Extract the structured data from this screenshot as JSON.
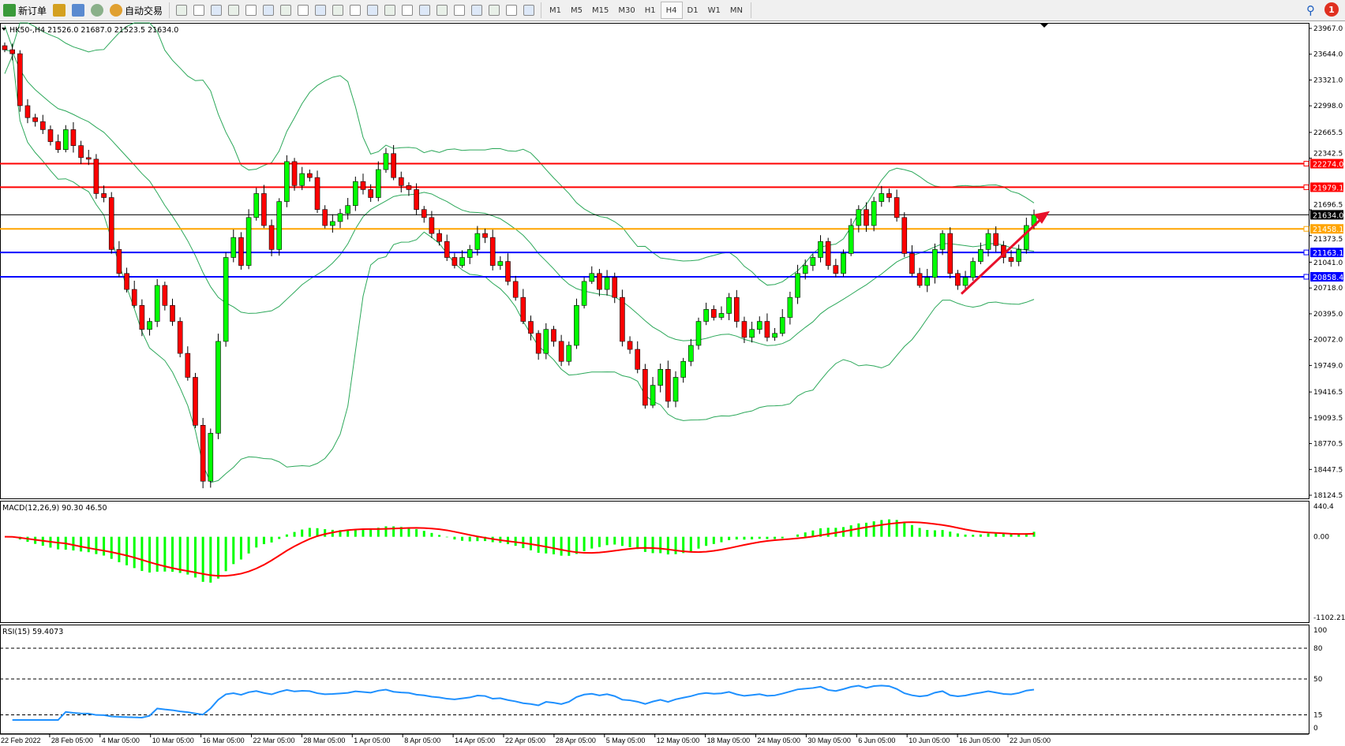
{
  "toolbar": {
    "new_order": "新订单",
    "auto_trade": "自动交易",
    "icons": [
      "chart-bar-icon",
      "candlestick-icon",
      "line-chart-icon",
      "zoom-in-icon",
      "zoom-out-icon",
      "tile-windows-icon",
      "auto-scroll-icon",
      "chart-shift-icon",
      "indicators-icon",
      "periods-icon",
      "templates-icon",
      "cursor-icon",
      "crosshair-icon",
      "vertical-line-icon",
      "horizontal-line-icon",
      "trendline-icon",
      "channel-icon",
      "fibonacci-icon",
      "text-icon",
      "text-label-icon",
      "arrows-icon"
    ],
    "timeframes": [
      "M1",
      "M5",
      "M15",
      "M30",
      "H1",
      "H4",
      "D1",
      "W1",
      "MN"
    ],
    "selected_timeframe": "H4",
    "notification_count": "1"
  },
  "chart": {
    "header": "HK50-,H4  21526.0 21687.0 21523.5 21634.0",
    "price_ticks": [
      "23967.0",
      "23644.0",
      "23321.0",
      "22998.0",
      "22665.5",
      "22342.5",
      "21696.5",
      "21373.5",
      "21041.0",
      "20718.0",
      "20395.0",
      "20072.0",
      "19749.0",
      "19416.5",
      "19093.5",
      "18770.5",
      "18447.5",
      "18124.5"
    ],
    "levels": [
      {
        "price": 22274.0,
        "label": "22274.0",
        "color": "#ff0000"
      },
      {
        "price": 21979.1,
        "label": "21979.1",
        "color": "#ff0000"
      },
      {
        "price": 21634.0,
        "label": "21634.0",
        "color": "#000000"
      },
      {
        "price": 21458.1,
        "label": "21458.1",
        "color": "#ffa500"
      },
      {
        "price": 21163.1,
        "label": "21163.1",
        "color": "#0000ff"
      },
      {
        "price": 20858.4,
        "label": "20858.4",
        "color": "#0000ff"
      }
    ],
    "trend_arrow": {
      "from_price": 20645,
      "to_price": 21680,
      "color": "#e8102a"
    },
    "colors": {
      "bull": "#00ff00",
      "bear": "#ff0000",
      "bands": "#2ca85a",
      "macd_hist": "#00ff00",
      "macd_signal": "#ff0000",
      "rsi": "#1e90ff"
    },
    "closes": [
      23700,
      23650,
      23000,
      22850,
      22800,
      22700,
      22550,
      22450,
      22700,
      22500,
      22350,
      22330,
      21900,
      21850,
      21200,
      20900,
      20700,
      20500,
      20200,
      20300,
      20750,
      20500,
      20300,
      19900,
      19600,
      19000,
      18300,
      18900,
      20050,
      21100,
      21350,
      21000,
      21600,
      21900,
      21500,
      21200,
      21800,
      22300,
      22000,
      22150,
      22100,
      21700,
      21500,
      21550,
      21650,
      21750,
      22050,
      21950,
      21850,
      22200,
      22400,
      22100,
      22000,
      21950,
      21700,
      21600,
      21400,
      21300,
      21100,
      21000,
      21100,
      21200,
      21400,
      21350,
      21000,
      21050,
      20800,
      20600,
      20300,
      20150,
      19900,
      20200,
      20050,
      19800,
      20000,
      20500,
      20800,
      20900,
      20700,
      20850,
      20600,
      20050,
      19950,
      19700,
      19250,
      19500,
      19700,
      19300,
      19600,
      19800,
      20000,
      20300,
      20450,
      20350,
      20400,
      20600,
      20300,
      20100,
      20200,
      20300,
      20100,
      20150,
      20350,
      20600,
      20900,
      21000,
      21100,
      21300,
      21000,
      20900,
      21150,
      21500,
      21700,
      21500,
      21800,
      21900,
      21850,
      21600,
      21150,
      20900,
      20750,
      20850,
      21200,
      21400,
      20900,
      20750,
      20850,
      21050,
      21200,
      21400,
      21250,
      21100,
      21050,
      21200,
      21500,
      21634
    ]
  },
  "macd": {
    "label": "MACD(12,26,9) 90.30 46.50",
    "ticks": [
      "440.4",
      "0.00",
      "-1102.21"
    ],
    "range": [
      -1102.21,
      440.4
    ]
  },
  "rsi": {
    "label": "RSI(15) 59.4073",
    "ticks": [
      "100",
      "80",
      "50",
      "15",
      "0"
    ],
    "levels": [
      80,
      50,
      15
    ]
  },
  "time_labels": [
    "22 Feb 2022",
    "28 Feb 05:00",
    "4 Mar 05:00",
    "10 Mar 05:00",
    "16 Mar 05:00",
    "22 Mar 05:00",
    "28 Mar 05:00",
    "1 Apr 05:00",
    "8 Apr 05:00",
    "14 Apr 05:00",
    "22 Apr 05:00",
    "28 Apr 05:00",
    "5 May 05:00",
    "12 May 05:00",
    "18 May 05:00",
    "24 May 05:00",
    "30 May 05:00",
    "6 Jun 05:00",
    "10 Jun 05:00",
    "16 Jun 05:00",
    "22 Jun 05:00"
  ]
}
